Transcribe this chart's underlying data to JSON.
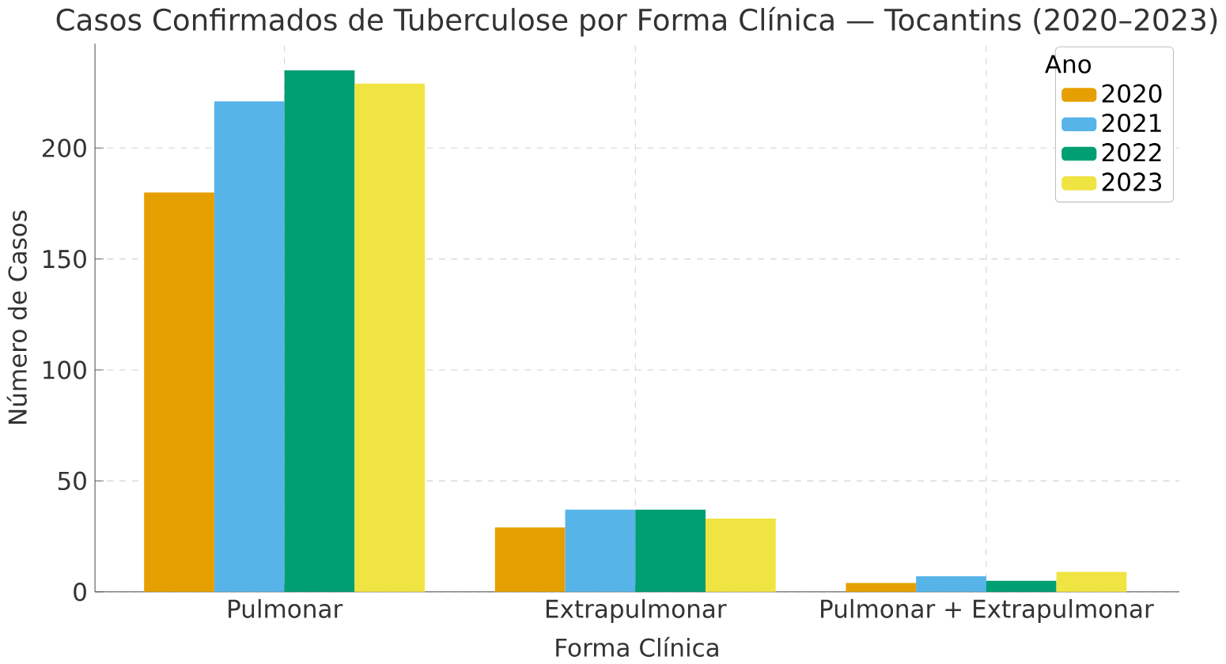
{
  "chart_data": {
    "type": "bar",
    "title": "Casos Confirmados de Tuberculose por Forma Clínica — Tocantins (2020–2023)",
    "xlabel": "Forma Clínica",
    "ylabel": "Número de Casos",
    "legend_title": "Ano",
    "categories": [
      "Pulmonar",
      "Extrapulmonar",
      "Pulmonar + Extrapulmonar"
    ],
    "series": [
      {
        "name": "2020",
        "color": "#e69f00",
        "values": [
          180,
          29,
          4
        ]
      },
      {
        "name": "2021",
        "color": "#56b4e9",
        "values": [
          221,
          37,
          7
        ]
      },
      {
        "name": "2022",
        "color": "#009e73",
        "values": [
          235,
          37,
          5
        ]
      },
      {
        "name": "2023",
        "color": "#f0e442",
        "values": [
          229,
          33,
          9
        ]
      }
    ],
    "ylim": [
      0,
      247
    ],
    "yticks": [
      0,
      50,
      100,
      150,
      200
    ],
    "grid": true,
    "legend": "top right"
  }
}
